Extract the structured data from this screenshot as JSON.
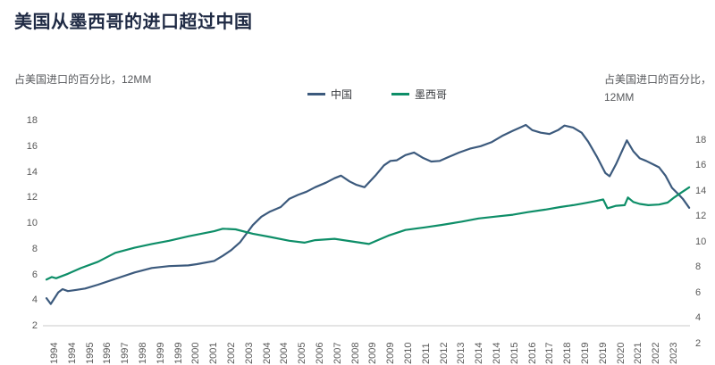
{
  "title": "美国从墨西哥的进口超过中国",
  "left_axis_caption": "占美国进口的百分比，12MM",
  "right_axis_caption_line1": "占美国进口的百分比，",
  "right_axis_caption_line2": "12MM",
  "legend": [
    {
      "label": "中国",
      "color": "#3c5a7d"
    },
    {
      "label": "墨西哥",
      "color": "#0e8e68"
    }
  ],
  "colors": {
    "china_line": "#3c5a7d",
    "mexico_line": "#0e8e68",
    "axis_text": "#595959",
    "baseline": "#c9c9c9",
    "title_text": "#1f2a44"
  },
  "chart_data": {
    "type": "line",
    "title": "美国从墨西哥的进口超过中国",
    "ylabel_left": "占美国进口的百分比，12MM",
    "ylabel_right": "占美国进口的百分比，12MM",
    "grid": false,
    "legend_position": "top-center",
    "left_axis": {
      "ticks": [
        18,
        16,
        14,
        12,
        10,
        8,
        6,
        4,
        2
      ],
      "range": [
        2,
        18
      ]
    },
    "right_axis": {
      "ticks": [
        18,
        16,
        14,
        12,
        10,
        8,
        6,
        4,
        2
      ],
      "range": [
        2,
        18
      ],
      "offset_vs_left": "shifted down ~1.5 units"
    },
    "x_tick_labels": [
      "1994",
      "1994",
      "1995",
      "1996",
      "1997",
      "1998",
      "1999",
      "1999",
      "2000",
      "2001",
      "2002",
      "2003",
      "2004",
      "2004",
      "2005",
      "2006",
      "2007",
      "2008",
      "2009",
      "2009",
      "2010",
      "2011",
      "2012",
      "2013",
      "2014",
      "2014",
      "2015",
      "2016",
      "2017",
      "2018",
      "2019",
      "2019",
      "2020",
      "2021",
      "2022",
      "2023"
    ],
    "x_range_years": [
      1994,
      2023.9
    ],
    "series": [
      {
        "name": "中国",
        "axis": "left",
        "color": "#3c5a7d",
        "points": [
          [
            1994.0,
            4.15
          ],
          [
            1994.2,
            3.7
          ],
          [
            1994.55,
            4.6
          ],
          [
            1994.75,
            4.85
          ],
          [
            1995.0,
            4.7
          ],
          [
            1995.4,
            4.8
          ],
          [
            1995.8,
            4.9
          ],
          [
            1996.4,
            5.2
          ],
          [
            1997.2,
            5.65
          ],
          [
            1998.1,
            6.15
          ],
          [
            1998.9,
            6.5
          ],
          [
            1999.7,
            6.65
          ],
          [
            2000.6,
            6.7
          ],
          [
            2001.0,
            6.8
          ],
          [
            2001.8,
            7.05
          ],
          [
            2002.2,
            7.45
          ],
          [
            2002.6,
            7.9
          ],
          [
            2003.0,
            8.5
          ],
          [
            2003.6,
            9.85
          ],
          [
            2004.0,
            10.5
          ],
          [
            2004.4,
            10.9
          ],
          [
            2004.9,
            11.25
          ],
          [
            2005.3,
            11.9
          ],
          [
            2005.7,
            12.2
          ],
          [
            2006.1,
            12.45
          ],
          [
            2006.5,
            12.8
          ],
          [
            2007.0,
            13.15
          ],
          [
            2007.4,
            13.5
          ],
          [
            2007.7,
            13.7
          ],
          [
            2008.1,
            13.25
          ],
          [
            2008.4,
            13.0
          ],
          [
            2008.8,
            12.8
          ],
          [
            2009.3,
            13.7
          ],
          [
            2009.7,
            14.5
          ],
          [
            2010.0,
            14.85
          ],
          [
            2010.3,
            14.9
          ],
          [
            2010.7,
            15.3
          ],
          [
            2011.1,
            15.5
          ],
          [
            2011.5,
            15.1
          ],
          [
            2011.9,
            14.8
          ],
          [
            2012.3,
            14.85
          ],
          [
            2012.7,
            15.15
          ],
          [
            2013.2,
            15.5
          ],
          [
            2013.7,
            15.8
          ],
          [
            2014.2,
            16.0
          ],
          [
            2014.7,
            16.3
          ],
          [
            2015.2,
            16.8
          ],
          [
            2015.7,
            17.2
          ],
          [
            2016.1,
            17.5
          ],
          [
            2016.3,
            17.65
          ],
          [
            2016.6,
            17.25
          ],
          [
            2017.0,
            17.05
          ],
          [
            2017.4,
            16.95
          ],
          [
            2017.8,
            17.25
          ],
          [
            2018.1,
            17.6
          ],
          [
            2018.5,
            17.45
          ],
          [
            2018.9,
            17.05
          ],
          [
            2019.2,
            16.35
          ],
          [
            2019.6,
            15.2
          ],
          [
            2020.0,
            13.9
          ],
          [
            2020.2,
            13.65
          ],
          [
            2020.5,
            14.6
          ],
          [
            2020.8,
            15.7
          ],
          [
            2021.0,
            16.45
          ],
          [
            2021.3,
            15.6
          ],
          [
            2021.6,
            15.05
          ],
          [
            2021.9,
            14.85
          ],
          [
            2022.2,
            14.6
          ],
          [
            2022.5,
            14.35
          ],
          [
            2022.8,
            13.7
          ],
          [
            2023.1,
            12.75
          ],
          [
            2023.4,
            12.25
          ],
          [
            2023.6,
            11.9
          ],
          [
            2023.9,
            11.2
          ]
        ]
      },
      {
        "name": "墨西哥",
        "axis": "right",
        "color": "#0e8e68",
        "points": [
          [
            1994.0,
            7.0
          ],
          [
            1994.25,
            7.2
          ],
          [
            1994.45,
            7.1
          ],
          [
            1995.0,
            7.45
          ],
          [
            1995.6,
            7.9
          ],
          [
            1996.4,
            8.4
          ],
          [
            1997.2,
            9.1
          ],
          [
            1998.1,
            9.5
          ],
          [
            1998.9,
            9.8
          ],
          [
            1999.7,
            10.05
          ],
          [
            2000.6,
            10.4
          ],
          [
            2001.2,
            10.6
          ],
          [
            2001.8,
            10.8
          ],
          [
            2002.2,
            11.0
          ],
          [
            2002.8,
            10.95
          ],
          [
            2003.6,
            10.6
          ],
          [
            2004.4,
            10.35
          ],
          [
            2005.3,
            10.05
          ],
          [
            2006.0,
            9.9
          ],
          [
            2006.5,
            10.1
          ],
          [
            2007.4,
            10.2
          ],
          [
            2008.2,
            10.0
          ],
          [
            2009.0,
            9.8
          ],
          [
            2009.9,
            10.45
          ],
          [
            2010.7,
            10.9
          ],
          [
            2011.6,
            11.1
          ],
          [
            2012.4,
            11.3
          ],
          [
            2013.3,
            11.55
          ],
          [
            2014.1,
            11.8
          ],
          [
            2014.9,
            11.95
          ],
          [
            2015.7,
            12.1
          ],
          [
            2016.4,
            12.3
          ],
          [
            2017.2,
            12.5
          ],
          [
            2017.9,
            12.7
          ],
          [
            2018.5,
            12.85
          ],
          [
            2019.0,
            13.0
          ],
          [
            2019.5,
            13.15
          ],
          [
            2019.9,
            13.3
          ],
          [
            2020.1,
            12.6
          ],
          [
            2020.5,
            12.8
          ],
          [
            2020.9,
            12.85
          ],
          [
            2021.05,
            13.45
          ],
          [
            2021.3,
            13.1
          ],
          [
            2021.6,
            12.95
          ],
          [
            2022.0,
            12.85
          ],
          [
            2022.5,
            12.9
          ],
          [
            2022.9,
            13.05
          ],
          [
            2023.2,
            13.45
          ],
          [
            2023.5,
            13.8
          ],
          [
            2023.9,
            14.25
          ]
        ]
      }
    ]
  }
}
